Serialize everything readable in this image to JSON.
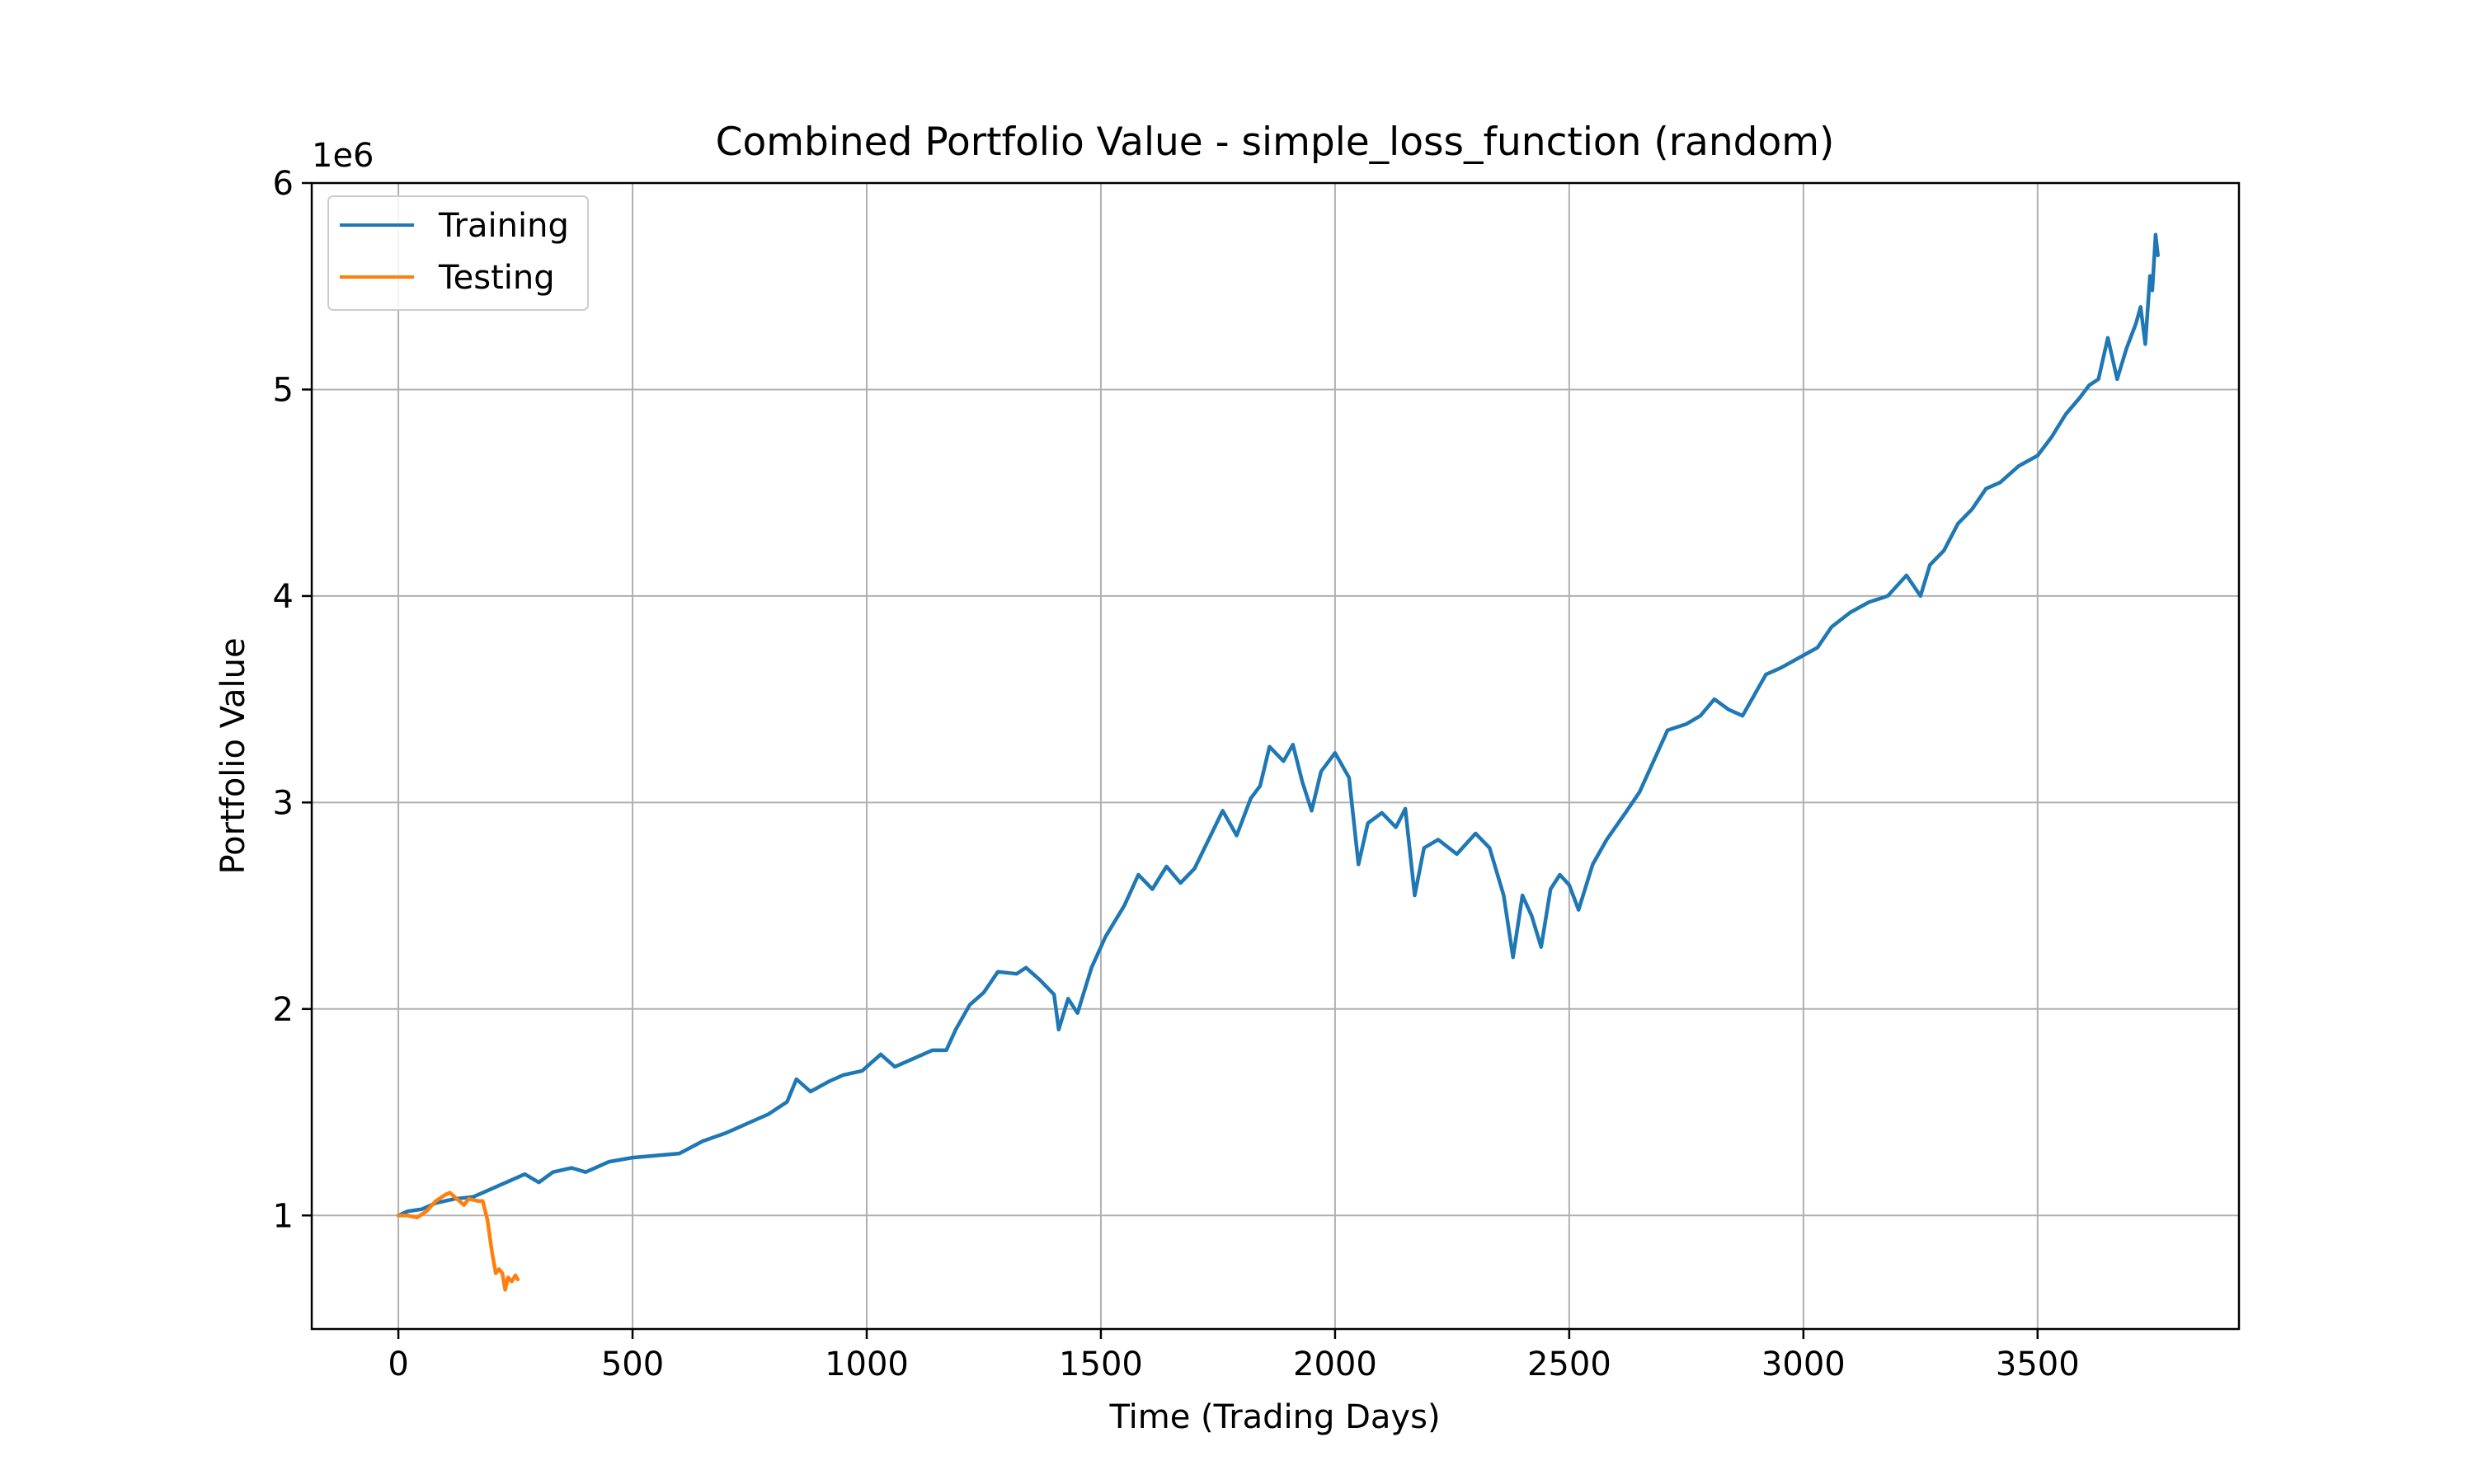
{
  "chart_data": {
    "type": "line",
    "title": "Combined Portfolio Value - simple_loss_function (random)",
    "xlabel": "Time (Trading Days)",
    "ylabel": "Portfolio Value",
    "y_offset_label": "1e6",
    "xlim": [
      -185,
      3930
    ],
    "ylim": [
      0.45,
      6.0
    ],
    "y_scale_factor": 1000000,
    "x_ticks": [
      0,
      500,
      1000,
      1500,
      2000,
      2500,
      3000,
      3500
    ],
    "y_ticks": [
      1,
      2,
      3,
      4,
      5,
      6
    ],
    "grid": true,
    "legend_position": "upper-left",
    "series": [
      {
        "name": "Training",
        "color": "#1f77b4",
        "points": [
          [
            0,
            1.0
          ],
          [
            20,
            1.02
          ],
          [
            50,
            1.03
          ],
          [
            80,
            1.06
          ],
          [
            120,
            1.08
          ],
          [
            160,
            1.09
          ],
          [
            200,
            1.13
          ],
          [
            240,
            1.17
          ],
          [
            270,
            1.2
          ],
          [
            300,
            1.16
          ],
          [
            330,
            1.21
          ],
          [
            370,
            1.23
          ],
          [
            400,
            1.21
          ],
          [
            450,
            1.26
          ],
          [
            500,
            1.28
          ],
          [
            550,
            1.29
          ],
          [
            600,
            1.3
          ],
          [
            650,
            1.36
          ],
          [
            700,
            1.4
          ],
          [
            750,
            1.45
          ],
          [
            790,
            1.49
          ],
          [
            830,
            1.55
          ],
          [
            850,
            1.66
          ],
          [
            880,
            1.6
          ],
          [
            920,
            1.65
          ],
          [
            950,
            1.68
          ],
          [
            990,
            1.7
          ],
          [
            1030,
            1.78
          ],
          [
            1060,
            1.72
          ],
          [
            1100,
            1.76
          ],
          [
            1140,
            1.8
          ],
          [
            1170,
            1.8
          ],
          [
            1190,
            1.9
          ],
          [
            1220,
            2.02
          ],
          [
            1250,
            2.08
          ],
          [
            1280,
            2.18
          ],
          [
            1320,
            2.17
          ],
          [
            1340,
            2.2
          ],
          [
            1370,
            2.14
          ],
          [
            1400,
            2.07
          ],
          [
            1410,
            1.9
          ],
          [
            1430,
            2.05
          ],
          [
            1450,
            1.98
          ],
          [
            1480,
            2.2
          ],
          [
            1510,
            2.35
          ],
          [
            1550,
            2.5
          ],
          [
            1580,
            2.65
          ],
          [
            1610,
            2.58
          ],
          [
            1640,
            2.69
          ],
          [
            1670,
            2.61
          ],
          [
            1700,
            2.68
          ],
          [
            1730,
            2.82
          ],
          [
            1760,
            2.96
          ],
          [
            1790,
            2.84
          ],
          [
            1820,
            3.02
          ],
          [
            1840,
            3.08
          ],
          [
            1860,
            3.27
          ],
          [
            1890,
            3.2
          ],
          [
            1910,
            3.28
          ],
          [
            1930,
            3.1
          ],
          [
            1950,
            2.96
          ],
          [
            1970,
            3.15
          ],
          [
            2000,
            3.24
          ],
          [
            2030,
            3.12
          ],
          [
            2050,
            2.7
          ],
          [
            2070,
            2.9
          ],
          [
            2100,
            2.95
          ],
          [
            2130,
            2.88
          ],
          [
            2150,
            2.97
          ],
          [
            2170,
            2.55
          ],
          [
            2190,
            2.78
          ],
          [
            2220,
            2.82
          ],
          [
            2260,
            2.75
          ],
          [
            2300,
            2.85
          ],
          [
            2330,
            2.78
          ],
          [
            2360,
            2.55
          ],
          [
            2380,
            2.25
          ],
          [
            2400,
            2.55
          ],
          [
            2420,
            2.45
          ],
          [
            2440,
            2.3
          ],
          [
            2460,
            2.58
          ],
          [
            2480,
            2.65
          ],
          [
            2500,
            2.6
          ],
          [
            2520,
            2.48
          ],
          [
            2550,
            2.7
          ],
          [
            2580,
            2.82
          ],
          [
            2620,
            2.95
          ],
          [
            2650,
            3.05
          ],
          [
            2680,
            3.2
          ],
          [
            2710,
            3.35
          ],
          [
            2750,
            3.38
          ],
          [
            2780,
            3.42
          ],
          [
            2810,
            3.5
          ],
          [
            2840,
            3.45
          ],
          [
            2870,
            3.42
          ],
          [
            2890,
            3.5
          ],
          [
            2920,
            3.62
          ],
          [
            2950,
            3.65
          ],
          [
            2990,
            3.7
          ],
          [
            3030,
            3.75
          ],
          [
            3060,
            3.85
          ],
          [
            3100,
            3.92
          ],
          [
            3140,
            3.97
          ],
          [
            3180,
            4.0
          ],
          [
            3220,
            4.1
          ],
          [
            3250,
            4.0
          ],
          [
            3270,
            4.15
          ],
          [
            3300,
            4.22
          ],
          [
            3330,
            4.35
          ],
          [
            3360,
            4.42
          ],
          [
            3390,
            4.52
          ],
          [
            3420,
            4.55
          ],
          [
            3460,
            4.63
          ],
          [
            3500,
            4.68
          ],
          [
            3530,
            4.77
          ],
          [
            3560,
            4.88
          ],
          [
            3590,
            4.96
          ],
          [
            3610,
            5.02
          ],
          [
            3630,
            5.05
          ],
          [
            3650,
            5.25
          ],
          [
            3670,
            5.05
          ],
          [
            3690,
            5.2
          ],
          [
            3710,
            5.32
          ],
          [
            3720,
            5.4
          ],
          [
            3730,
            5.22
          ],
          [
            3740,
            5.55
          ],
          [
            3745,
            5.48
          ],
          [
            3752,
            5.75
          ],
          [
            3757,
            5.65
          ]
        ]
      },
      {
        "name": "Testing",
        "color": "#ff7f0e",
        "points": [
          [
            0,
            1.0
          ],
          [
            20,
            1.0
          ],
          [
            40,
            0.99
          ],
          [
            60,
            1.02
          ],
          [
            80,
            1.07
          ],
          [
            100,
            1.1
          ],
          [
            110,
            1.11
          ],
          [
            125,
            1.08
          ],
          [
            140,
            1.05
          ],
          [
            150,
            1.08
          ],
          [
            170,
            1.07
          ],
          [
            180,
            1.07
          ],
          [
            190,
            0.98
          ],
          [
            200,
            0.82
          ],
          [
            208,
            0.72
          ],
          [
            215,
            0.74
          ],
          [
            222,
            0.72
          ],
          [
            228,
            0.64
          ],
          [
            234,
            0.7
          ],
          [
            242,
            0.68
          ],
          [
            250,
            0.71
          ],
          [
            255,
            0.69
          ]
        ]
      }
    ]
  }
}
